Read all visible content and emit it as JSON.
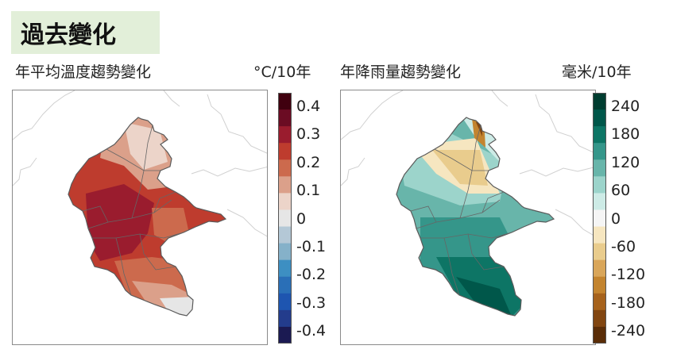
{
  "section_title": "過去變化",
  "temperature_map": {
    "title": "年平均溫度趨勢變化",
    "unit": "°C/10年",
    "colorbar": {
      "colors": [
        "#40000f",
        "#6b0c23",
        "#9a1c2e",
        "#be3c2e",
        "#cc6a4d",
        "#dba08a",
        "#ecd4c9",
        "#e6e6e6",
        "#b4c8d6",
        "#85b1c9",
        "#3d8fc2",
        "#2a6fb7",
        "#1e55b0",
        "#233c8c",
        "#1b1a52"
      ],
      "tick_labels": [
        "0.4",
        "0.3",
        "0.2",
        "0.1",
        "0",
        "-0.1",
        "-0.2",
        "-0.3",
        "-0.4"
      ]
    }
  },
  "rainfall_map": {
    "title": "年降雨量趨勢變化",
    "unit": "毫米/10年",
    "colorbar": {
      "colors": [
        "#003d30",
        "#00574a",
        "#0d7565",
        "#35968a",
        "#68b5aa",
        "#9cd4cb",
        "#cdebe6",
        "#f5f5f5",
        "#f6e6c0",
        "#e9cc8d",
        "#d9a65a",
        "#c3842f",
        "#a6621c",
        "#814611",
        "#5a2d08"
      ],
      "tick_labels": [
        "240",
        "180",
        "120",
        "60",
        "0",
        "-60",
        "-120",
        "-180",
        "-240"
      ]
    }
  }
}
